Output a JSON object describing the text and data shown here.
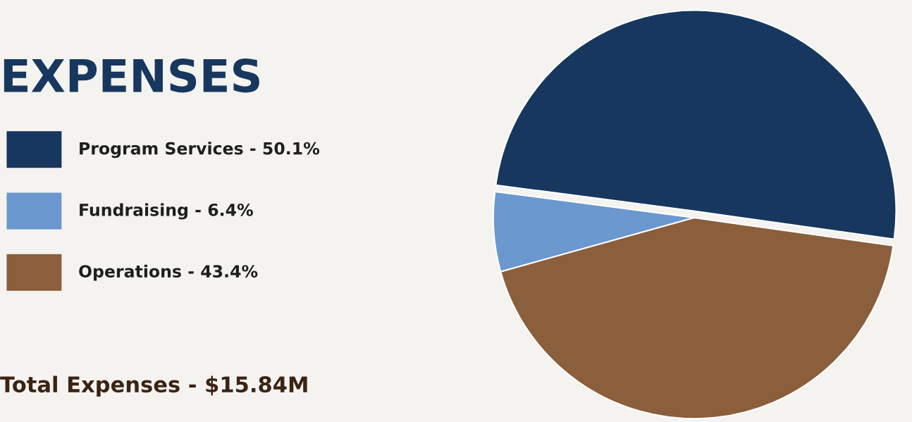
{
  "chart_data": {
    "type": "pie",
    "title": "EXPENSES",
    "categories": [
      "Program Services - 50.1%",
      "Fundraising - 6.4%",
      "Operations - 43.4%"
    ],
    "values": [
      50.1,
      6.4,
      43.4
    ],
    "colors": [
      "#17375e",
      "#6a98cf",
      "#8b5e3c"
    ],
    "legend": "left",
    "annotations": [
      "Total Expenses - $15.84M"
    ]
  }
}
